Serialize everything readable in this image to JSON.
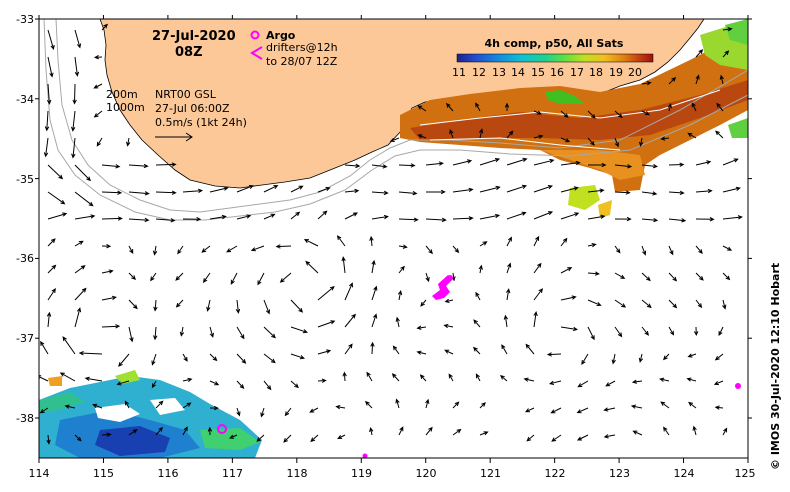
{
  "date": "27-Jul-2020",
  "hour": "08Z",
  "legend": {
    "argo_label": "Argo",
    "drifters_line1": "drifters@12h",
    "drifters_line2": "to 28/07 12Z",
    "argo_color": "#ff00ff",
    "drifter_color": "#ff00ff"
  },
  "contours": {
    "c200": "200m",
    "c1000": "1000m"
  },
  "model": {
    "name": "NRT00 GSL",
    "time": "27-Jul 06:00Z",
    "scale": "0.5m/s (1kt 24h)"
  },
  "sst_colorbar": {
    "title": "4h comp, p50, All Sats",
    "ticks": [
      "11",
      "12",
      "13",
      "14",
      "15",
      "16",
      "17",
      "18",
      "19",
      "20"
    ],
    "colors": [
      "#2020a0",
      "#2050d0",
      "#1090e0",
      "#10c0d0",
      "#20d090",
      "#60e040",
      "#c0e020",
      "#f0c020",
      "#e08010",
      "#c04010",
      "#a01010"
    ]
  },
  "axes": {
    "x_ticks": [
      "114",
      "115",
      "116",
      "117",
      "118",
      "119",
      "120",
      "121",
      "122",
      "123",
      "124",
      "125"
    ],
    "y_ticks": [
      "-33",
      "-34",
      "-35",
      "-36",
      "-37",
      "-38"
    ],
    "lon_range": [
      114,
      125
    ],
    "lat_range": [
      -38.5,
      -33
    ]
  },
  "credit": "© IMOS 30-Jul-2020 12:10 Hobart",
  "colors": {
    "land": "#fcc898",
    "arrow": "#000000"
  }
}
